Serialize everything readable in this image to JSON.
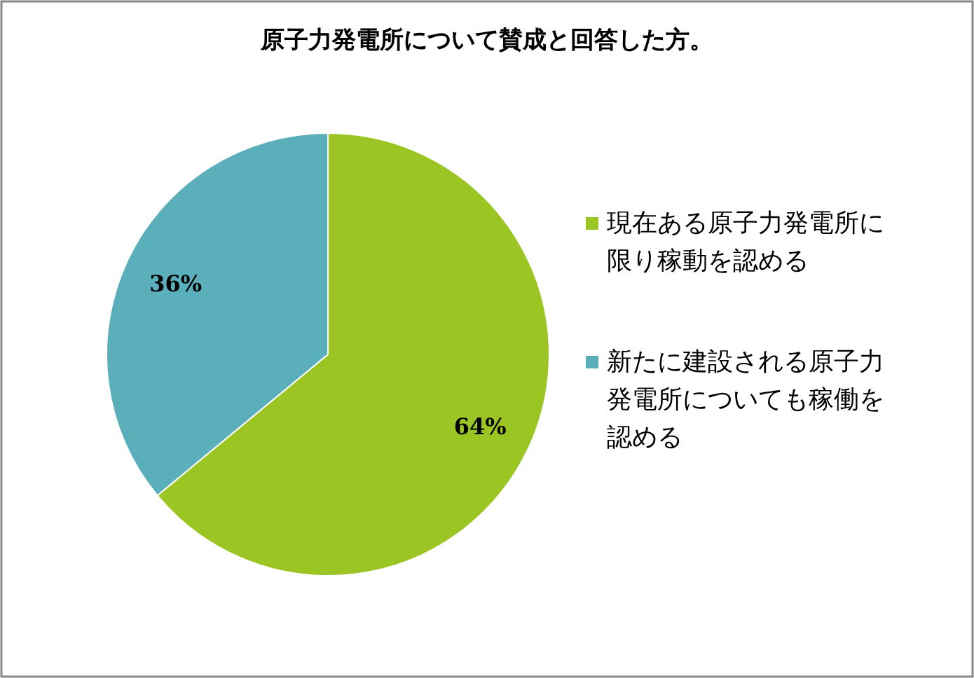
{
  "chart_data": {
    "type": "pie",
    "title": "原子力発電所について賛成と回答した方。",
    "categories": [
      "現在ある原子力発電所に限り稼動を認める",
      "新たに建設される原子力発電所についても稼働を認める"
    ],
    "values": [
      64,
      36
    ],
    "colors": [
      "#9bc523",
      "#5aafbb"
    ],
    "value_labels": [
      "64%",
      "36%"
    ],
    "legend": "right"
  }
}
